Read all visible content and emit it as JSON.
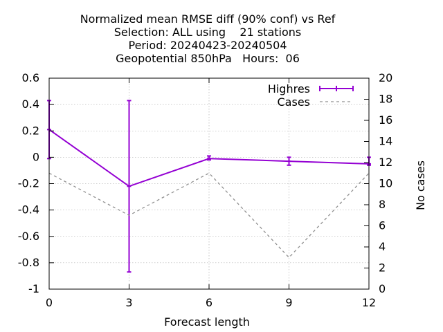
{
  "chart_data": {
    "type": "line",
    "title_lines": [
      "Normalized mean RMSE diff (90% conf) vs Ref",
      "Selection: ALL using    21 stations",
      "Period: 20240423-20240504",
      "Geopotential 850hPa   Hours:  06"
    ],
    "xlabel": "Forecast length",
    "ylabel": "",
    "y2label": "No cases",
    "x": [
      0,
      3,
      6,
      9,
      12
    ],
    "xlim": [
      0,
      12
    ],
    "ylim": [
      -1,
      0.6
    ],
    "y2lim": [
      0,
      20
    ],
    "x_ticks": [
      0,
      3,
      6,
      9,
      12
    ],
    "x_tick_labels": [
      "0",
      "3",
      "6",
      "9",
      "12"
    ],
    "y_ticks": [
      -1,
      -0.8,
      -0.6,
      -0.4,
      -0.2,
      0,
      0.2,
      0.4,
      0.6
    ],
    "y_tick_labels": [
      "-1",
      "-0.8",
      "-0.6",
      "-0.4",
      "-0.2",
      "0",
      "0.2",
      "0.4",
      "0.6"
    ],
    "y2_ticks": [
      0,
      2,
      4,
      6,
      8,
      10,
      12,
      14,
      16,
      18,
      20
    ],
    "y2_tick_labels": [
      "0",
      "2",
      "4",
      "6",
      "8",
      "10",
      "12",
      "14",
      "16",
      "18",
      "20"
    ],
    "grid": true,
    "legend_position": "top-right",
    "series": [
      {
        "name": "Highres",
        "axis": "y1",
        "style": "line-errorbars",
        "color": "#9400d3",
        "values": [
          0.21,
          -0.22,
          -0.01,
          -0.03,
          -0.05
        ],
        "err_low": [
          -0.01,
          -0.87,
          -0.02,
          -0.06,
          -0.06
        ],
        "err_high": [
          0.43,
          0.43,
          0.01,
          0.0,
          0.0
        ]
      },
      {
        "name": "Cases",
        "axis": "y2",
        "style": "dashed",
        "color": "#909090",
        "values": [
          11,
          7,
          11,
          3,
          11
        ]
      }
    ]
  }
}
